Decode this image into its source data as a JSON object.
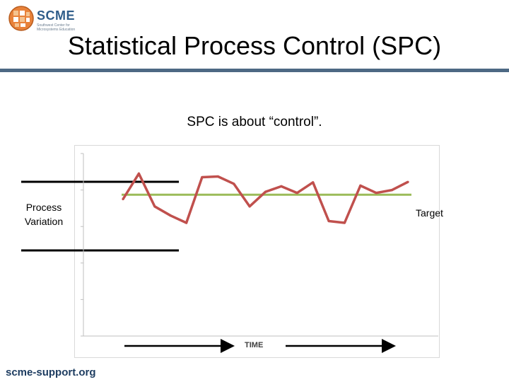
{
  "logo": {
    "name": "SCME",
    "tagline": "Southwest Center for Microsystems Education",
    "icon": "globe-icon"
  },
  "slide": {
    "title": "Statistical Process Control (SPC)",
    "subtitle": "SPC is about “control”.",
    "footer": "scme-support.org"
  },
  "annotations": {
    "process_variation_line1": "Process",
    "process_variation_line2": "Variation",
    "target": "Target"
  },
  "colors": {
    "series": "#c0504d",
    "target": "#9bbb59",
    "rule": "#4d6984",
    "footer": "#1e3d61"
  },
  "chart_data": {
    "type": "line",
    "title": "",
    "xlabel": "TIME",
    "ylabel": "",
    "ylim": [
      0,
      5
    ],
    "yticks_count": 6,
    "grid": false,
    "series": [
      {
        "values": [
          3.75,
          4.45,
          3.55,
          3.3,
          3.1,
          4.35,
          4.37,
          4.17,
          3.55,
          3.95,
          4.1,
          3.92,
          4.21,
          3.15,
          3.1,
          4.12,
          3.92,
          4.0,
          4.22
        ]
      }
    ],
    "target_value": 3.87
  }
}
